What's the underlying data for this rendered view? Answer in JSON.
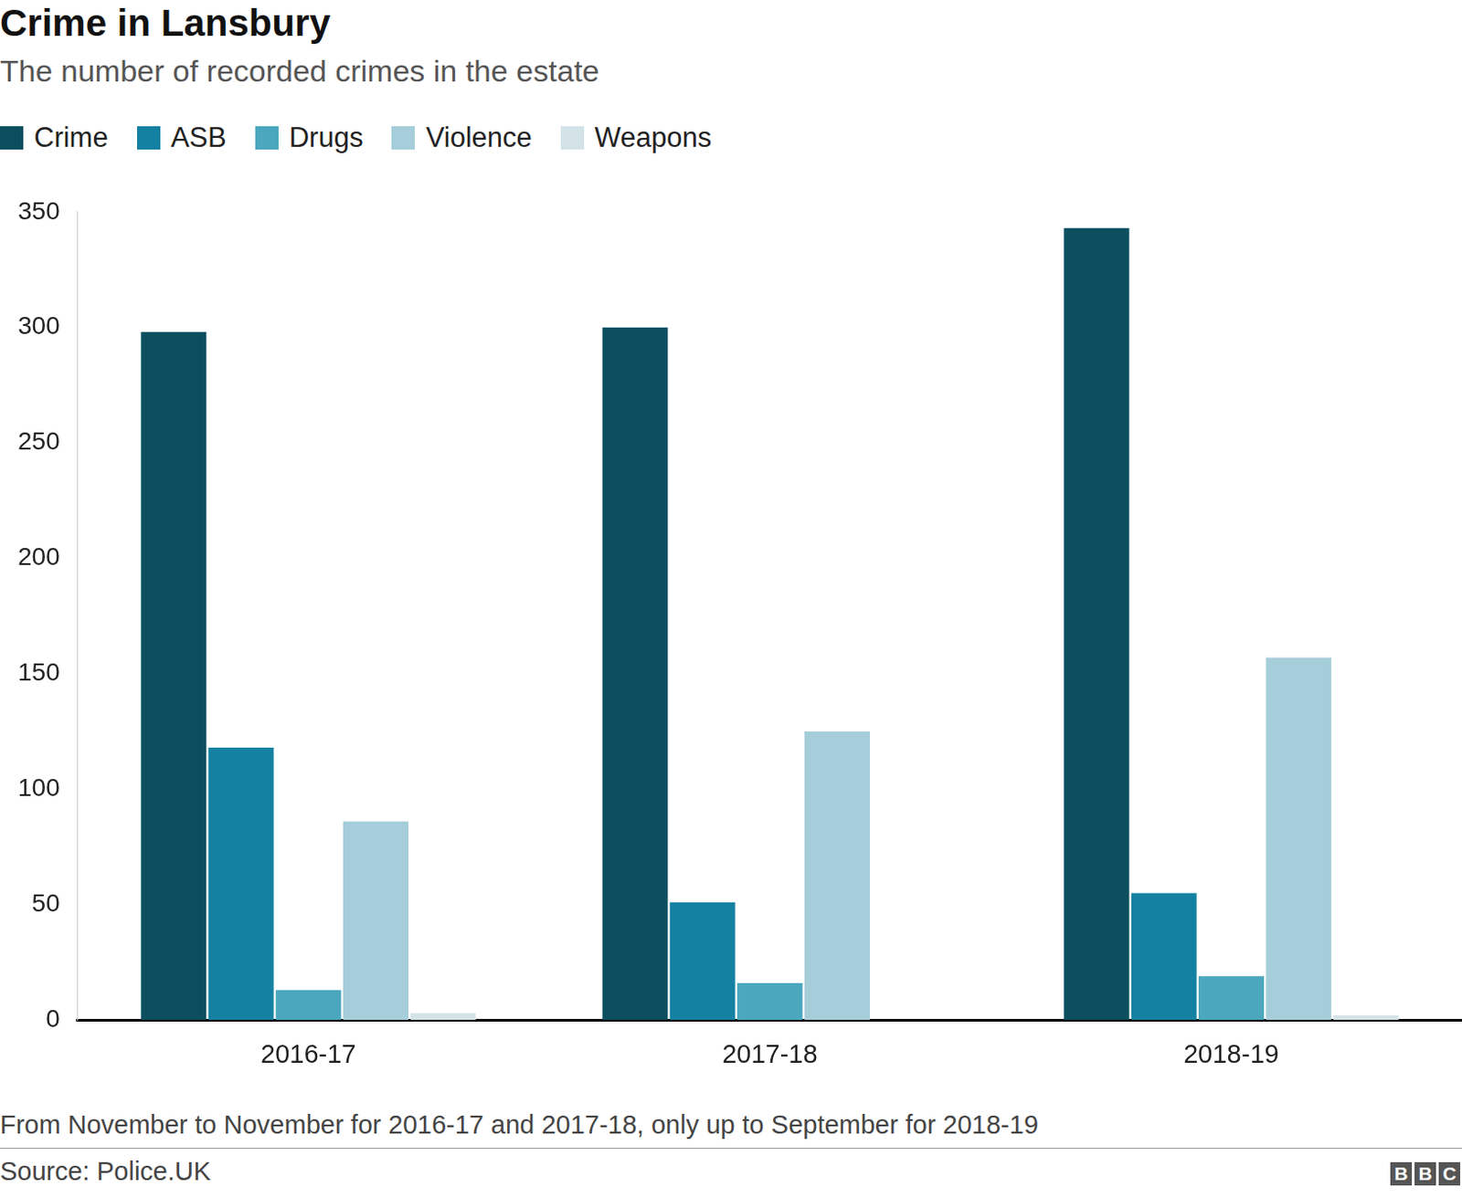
{
  "chart_data": {
    "type": "bar",
    "title": "Crime in Lansbury",
    "subtitle": "The number of recorded crimes in the estate",
    "categories": [
      "2016-17",
      "2017-18",
      "2018-19"
    ],
    "series": [
      {
        "name": "Crime",
        "color": "#0b4f5f",
        "values": [
          298,
          300,
          343
        ]
      },
      {
        "name": "ASB",
        "color": "#1581a2",
        "values": [
          118,
          51,
          55
        ]
      },
      {
        "name": "Drugs",
        "color": "#4aa7be",
        "values": [
          13,
          16,
          19
        ]
      },
      {
        "name": "Violence",
        "color": "#a5cdda",
        "values": [
          86,
          125,
          157
        ]
      },
      {
        "name": "Weapons",
        "color": "#d3e3e8",
        "values": [
          3,
          0,
          2
        ]
      }
    ],
    "ylim": [
      0,
      350
    ],
    "yticks": [
      0,
      50,
      100,
      150,
      200,
      250,
      300,
      350
    ],
    "grid": false,
    "legend": "top-left",
    "note": "From November to November for 2016-17 and 2017-18, only up to September for 2018-19",
    "source": "Source: Police.UK",
    "logo": "BBC"
  }
}
